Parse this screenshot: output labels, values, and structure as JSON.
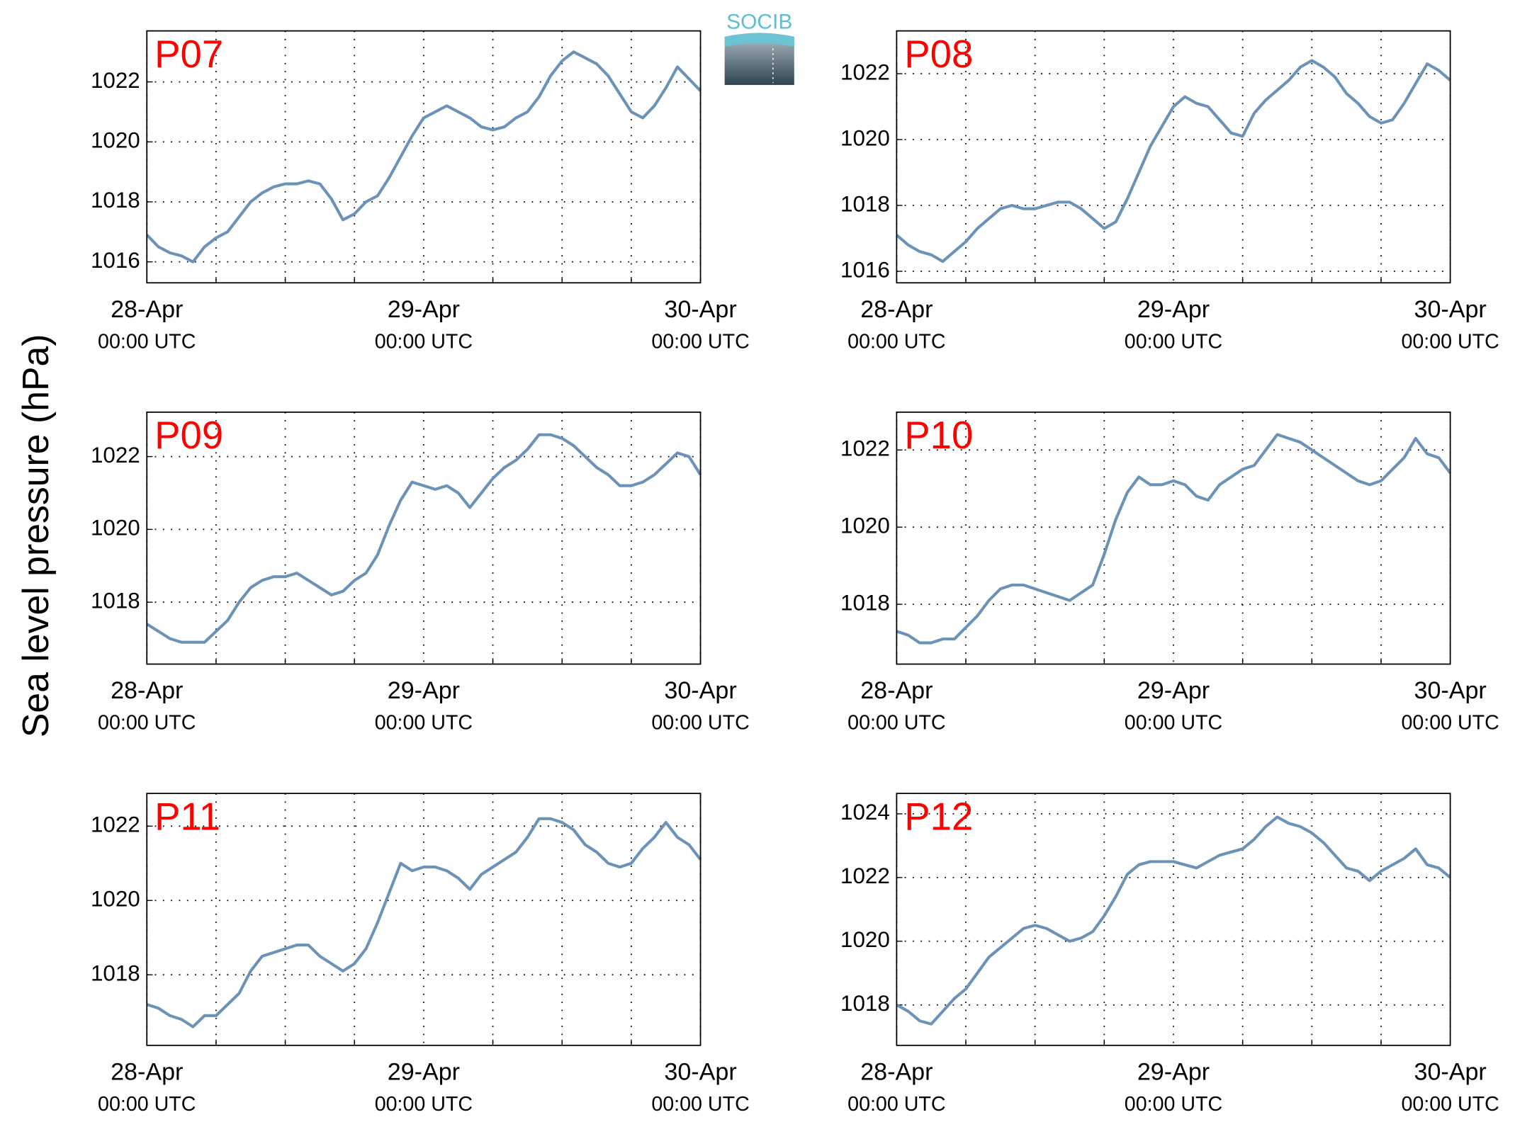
{
  "ylabel": "Sea level pressure (hPa)",
  "logo": "SOCIB",
  "chart_data": [
    {
      "type": "line",
      "title": "P07",
      "color": "#6b93b7",
      "grid": true,
      "x": [
        0,
        1,
        2,
        3,
        4,
        5,
        6,
        7,
        8,
        9,
        10,
        11,
        12,
        13,
        14,
        15,
        16,
        17,
        18,
        19,
        20,
        21,
        22,
        23,
        24,
        25,
        26,
        27,
        28,
        29,
        30,
        31,
        32,
        33,
        34,
        35,
        36,
        37,
        38,
        39,
        40,
        41,
        42,
        43,
        44,
        45,
        46,
        47,
        48
      ],
      "values": [
        1016.9,
        1016.5,
        1016.3,
        1016.2,
        1016.0,
        1016.5,
        1016.8,
        1017.0,
        1017.5,
        1018.0,
        1018.3,
        1018.5,
        1018.6,
        1018.6,
        1018.7,
        1018.6,
        1018.1,
        1017.4,
        1017.6,
        1018.0,
        1018.2,
        1018.8,
        1019.5,
        1020.2,
        1020.8,
        1021.0,
        1021.2,
        1021.0,
        1020.8,
        1020.5,
        1020.4,
        1020.5,
        1020.8,
        1021.0,
        1021.5,
        1022.2,
        1022.7,
        1023.0,
        1022.8,
        1022.6,
        1022.2,
        1021.6,
        1021.0,
        1020.8,
        1021.2,
        1021.8,
        1022.5,
        1022.1,
        1021.7
      ],
      "xlim": [
        0,
        48
      ],
      "ylim": [
        1015.3,
        1023.7
      ],
      "yticks": [
        1016,
        1018,
        1020,
        1022
      ],
      "xticks": [
        {
          "value": 0,
          "label": "28-Apr",
          "sublabel": "00:00 UTC"
        },
        {
          "value": 24,
          "label": "29-Apr",
          "sublabel": "00:00 UTC"
        },
        {
          "value": 48,
          "label": "30-Apr",
          "sublabel": "00:00 UTC"
        }
      ],
      "xminorticks": [
        6,
        12,
        18,
        30,
        36,
        42
      ]
    },
    {
      "type": "line",
      "title": "P08",
      "color": "#6b93b7",
      "grid": true,
      "x": [
        0,
        1,
        2,
        3,
        4,
        5,
        6,
        7,
        8,
        9,
        10,
        11,
        12,
        13,
        14,
        15,
        16,
        17,
        18,
        19,
        20,
        21,
        22,
        23,
        24,
        25,
        26,
        27,
        28,
        29,
        30,
        31,
        32,
        33,
        34,
        35,
        36,
        37,
        38,
        39,
        40,
        41,
        42,
        43,
        44,
        45,
        46,
        47,
        48
      ],
      "values": [
        1017.1,
        1016.8,
        1016.6,
        1016.5,
        1016.3,
        1016.6,
        1016.9,
        1017.3,
        1017.6,
        1017.9,
        1018.0,
        1017.9,
        1017.9,
        1018.0,
        1018.1,
        1018.1,
        1017.9,
        1017.6,
        1017.3,
        1017.5,
        1018.2,
        1019.0,
        1019.8,
        1020.4,
        1021.0,
        1021.3,
        1021.1,
        1021.0,
        1020.6,
        1020.2,
        1020.1,
        1020.8,
        1021.2,
        1021.5,
        1021.8,
        1022.2,
        1022.4,
        1022.2,
        1021.9,
        1021.4,
        1021.1,
        1020.7,
        1020.5,
        1020.6,
        1021.1,
        1021.7,
        1022.3,
        1022.1,
        1021.8
      ],
      "xlim": [
        0,
        48
      ],
      "ylim": [
        1015.65,
        1023.3
      ],
      "yticks": [
        1016,
        1018,
        1020,
        1022
      ],
      "xticks": [
        {
          "value": 0,
          "label": "28-Apr",
          "sublabel": "00:00 UTC"
        },
        {
          "value": 24,
          "label": "29-Apr",
          "sublabel": "00:00 UTC"
        },
        {
          "value": 48,
          "label": "30-Apr",
          "sublabel": "00:00 UTC"
        }
      ],
      "xminorticks": [
        6,
        12,
        18,
        30,
        36,
        42
      ]
    },
    {
      "type": "line",
      "title": "P09",
      "color": "#6b93b7",
      "grid": true,
      "x": [
        0,
        1,
        2,
        3,
        4,
        5,
        6,
        7,
        8,
        9,
        10,
        11,
        12,
        13,
        14,
        15,
        16,
        17,
        18,
        19,
        20,
        21,
        22,
        23,
        24,
        25,
        26,
        27,
        28,
        29,
        30,
        31,
        32,
        33,
        34,
        35,
        36,
        37,
        38,
        39,
        40,
        41,
        42,
        43,
        44,
        45,
        46,
        47,
        48
      ],
      "values": [
        1017.4,
        1017.2,
        1017.0,
        1016.9,
        1016.9,
        1016.9,
        1017.2,
        1017.5,
        1018.0,
        1018.4,
        1018.6,
        1018.7,
        1018.7,
        1018.8,
        1018.6,
        1018.4,
        1018.2,
        1018.3,
        1018.6,
        1018.8,
        1019.3,
        1020.1,
        1020.8,
        1021.3,
        1021.2,
        1021.1,
        1021.2,
        1021.0,
        1020.6,
        1021.0,
        1021.4,
        1021.7,
        1021.9,
        1022.2,
        1022.6,
        1022.6,
        1022.5,
        1022.3,
        1022.0,
        1021.7,
        1021.5,
        1021.2,
        1021.2,
        1021.3,
        1021.5,
        1021.8,
        1022.1,
        1022.0,
        1021.5
      ],
      "xlim": [
        0,
        48
      ],
      "ylim": [
        1016.3,
        1023.22
      ],
      "yticks": [
        1018,
        1020,
        1022
      ],
      "xticks": [
        {
          "value": 0,
          "label": "28-Apr",
          "sublabel": "00:00 UTC"
        },
        {
          "value": 24,
          "label": "29-Apr",
          "sublabel": "00:00 UTC"
        },
        {
          "value": 48,
          "label": "30-Apr",
          "sublabel": "00:00 UTC"
        }
      ],
      "xminorticks": [
        6,
        12,
        18,
        30,
        36,
        42
      ]
    },
    {
      "type": "line",
      "title": "P10",
      "color": "#6b93b7",
      "grid": true,
      "x": [
        0,
        1,
        2,
        3,
        4,
        5,
        6,
        7,
        8,
        9,
        10,
        11,
        12,
        13,
        14,
        15,
        16,
        17,
        18,
        19,
        20,
        21,
        22,
        23,
        24,
        25,
        26,
        27,
        28,
        29,
        30,
        31,
        32,
        33,
        34,
        35,
        36,
        37,
        38,
        39,
        40,
        41,
        42,
        43,
        44,
        45,
        46,
        47,
        48
      ],
      "values": [
        1017.3,
        1017.2,
        1017.0,
        1017.0,
        1017.1,
        1017.1,
        1017.4,
        1017.7,
        1018.1,
        1018.4,
        1018.5,
        1018.5,
        1018.4,
        1018.3,
        1018.2,
        1018.1,
        1018.3,
        1018.5,
        1019.3,
        1020.2,
        1020.9,
        1021.3,
        1021.1,
        1021.1,
        1021.2,
        1021.1,
        1020.8,
        1020.7,
        1021.1,
        1021.3,
        1021.5,
        1021.6,
        1022.0,
        1022.4,
        1022.3,
        1022.2,
        1022.0,
        1021.8,
        1021.6,
        1021.4,
        1021.2,
        1021.1,
        1021.2,
        1021.5,
        1021.8,
        1022.3,
        1021.9,
        1021.8,
        1021.4
      ],
      "xlim": [
        0,
        48
      ],
      "ylim": [
        1016.45,
        1022.98
      ],
      "yticks": [
        1018,
        1020,
        1022
      ],
      "xticks": [
        {
          "value": 0,
          "label": "28-Apr",
          "sublabel": "00:00 UTC"
        },
        {
          "value": 24,
          "label": "29-Apr",
          "sublabel": "00:00 UTC"
        },
        {
          "value": 48,
          "label": "30-Apr",
          "sublabel": "00:00 UTC"
        }
      ],
      "xminorticks": [
        6,
        12,
        18,
        30,
        36,
        42
      ]
    },
    {
      "type": "line",
      "title": "P11",
      "color": "#6b93b7",
      "grid": true,
      "x": [
        0,
        1,
        2,
        3,
        4,
        5,
        6,
        7,
        8,
        9,
        10,
        11,
        12,
        13,
        14,
        15,
        16,
        17,
        18,
        19,
        20,
        21,
        22,
        23,
        24,
        25,
        26,
        27,
        28,
        29,
        30,
        31,
        32,
        33,
        34,
        35,
        36,
        37,
        38,
        39,
        40,
        41,
        42,
        43,
        44,
        45,
        46,
        47,
        48
      ],
      "values": [
        1017.2,
        1017.1,
        1016.9,
        1016.8,
        1016.6,
        1016.9,
        1016.9,
        1017.2,
        1017.5,
        1018.1,
        1018.5,
        1018.6,
        1018.7,
        1018.8,
        1018.8,
        1018.5,
        1018.3,
        1018.1,
        1018.3,
        1018.7,
        1019.4,
        1020.2,
        1021.0,
        1020.8,
        1020.9,
        1020.9,
        1020.8,
        1020.6,
        1020.3,
        1020.7,
        1020.9,
        1021.1,
        1021.3,
        1021.7,
        1022.2,
        1022.2,
        1022.1,
        1021.9,
        1021.5,
        1021.3,
        1021.0,
        1020.9,
        1021.0,
        1021.4,
        1021.7,
        1022.1,
        1021.7,
        1021.5,
        1021.1
      ],
      "xlim": [
        0,
        48
      ],
      "ylim": [
        1016.1,
        1022.88
      ],
      "yticks": [
        1018,
        1020,
        1022
      ],
      "xticks": [
        {
          "value": 0,
          "label": "28-Apr",
          "sublabel": "00:00 UTC"
        },
        {
          "value": 24,
          "label": "29-Apr",
          "sublabel": "00:00 UTC"
        },
        {
          "value": 48,
          "label": "30-Apr",
          "sublabel": "00:00 UTC"
        }
      ],
      "xminorticks": [
        6,
        12,
        18,
        30,
        36,
        42
      ]
    },
    {
      "type": "line",
      "title": "P12",
      "color": "#6b93b7",
      "grid": true,
      "x": [
        0,
        1,
        2,
        3,
        4,
        5,
        6,
        7,
        8,
        9,
        10,
        11,
        12,
        13,
        14,
        15,
        16,
        17,
        18,
        19,
        20,
        21,
        22,
        23,
        24,
        25,
        26,
        27,
        28,
        29,
        30,
        31,
        32,
        33,
        34,
        35,
        36,
        37,
        38,
        39,
        40,
        41,
        42,
        43,
        44,
        45,
        46,
        47,
        48
      ],
      "values": [
        1018.0,
        1017.8,
        1017.5,
        1017.4,
        1017.8,
        1018.2,
        1018.5,
        1019.0,
        1019.5,
        1019.8,
        1020.1,
        1020.4,
        1020.5,
        1020.4,
        1020.2,
        1020.0,
        1020.1,
        1020.3,
        1020.8,
        1021.4,
        1022.1,
        1022.4,
        1022.5,
        1022.5,
        1022.5,
        1022.4,
        1022.3,
        1022.5,
        1022.7,
        1022.8,
        1022.9,
        1023.2,
        1023.6,
        1023.9,
        1023.7,
        1023.6,
        1023.4,
        1023.1,
        1022.7,
        1022.3,
        1022.2,
        1021.9,
        1022.2,
        1022.4,
        1022.6,
        1022.9,
        1022.4,
        1022.3,
        1022.0
      ],
      "xlim": [
        0,
        48
      ],
      "ylim": [
        1016.73,
        1024.64
      ],
      "yticks": [
        1018,
        1020,
        1022,
        1024
      ],
      "xticks": [
        {
          "value": 0,
          "label": "28-Apr",
          "sublabel": "00:00 UTC"
        },
        {
          "value": 24,
          "label": "29-Apr",
          "sublabel": "00:00 UTC"
        },
        {
          "value": 48,
          "label": "30-Apr",
          "sublabel": "00:00 UTC"
        }
      ],
      "xminorticks": [
        6,
        12,
        18,
        30,
        36,
        42
      ]
    }
  ]
}
